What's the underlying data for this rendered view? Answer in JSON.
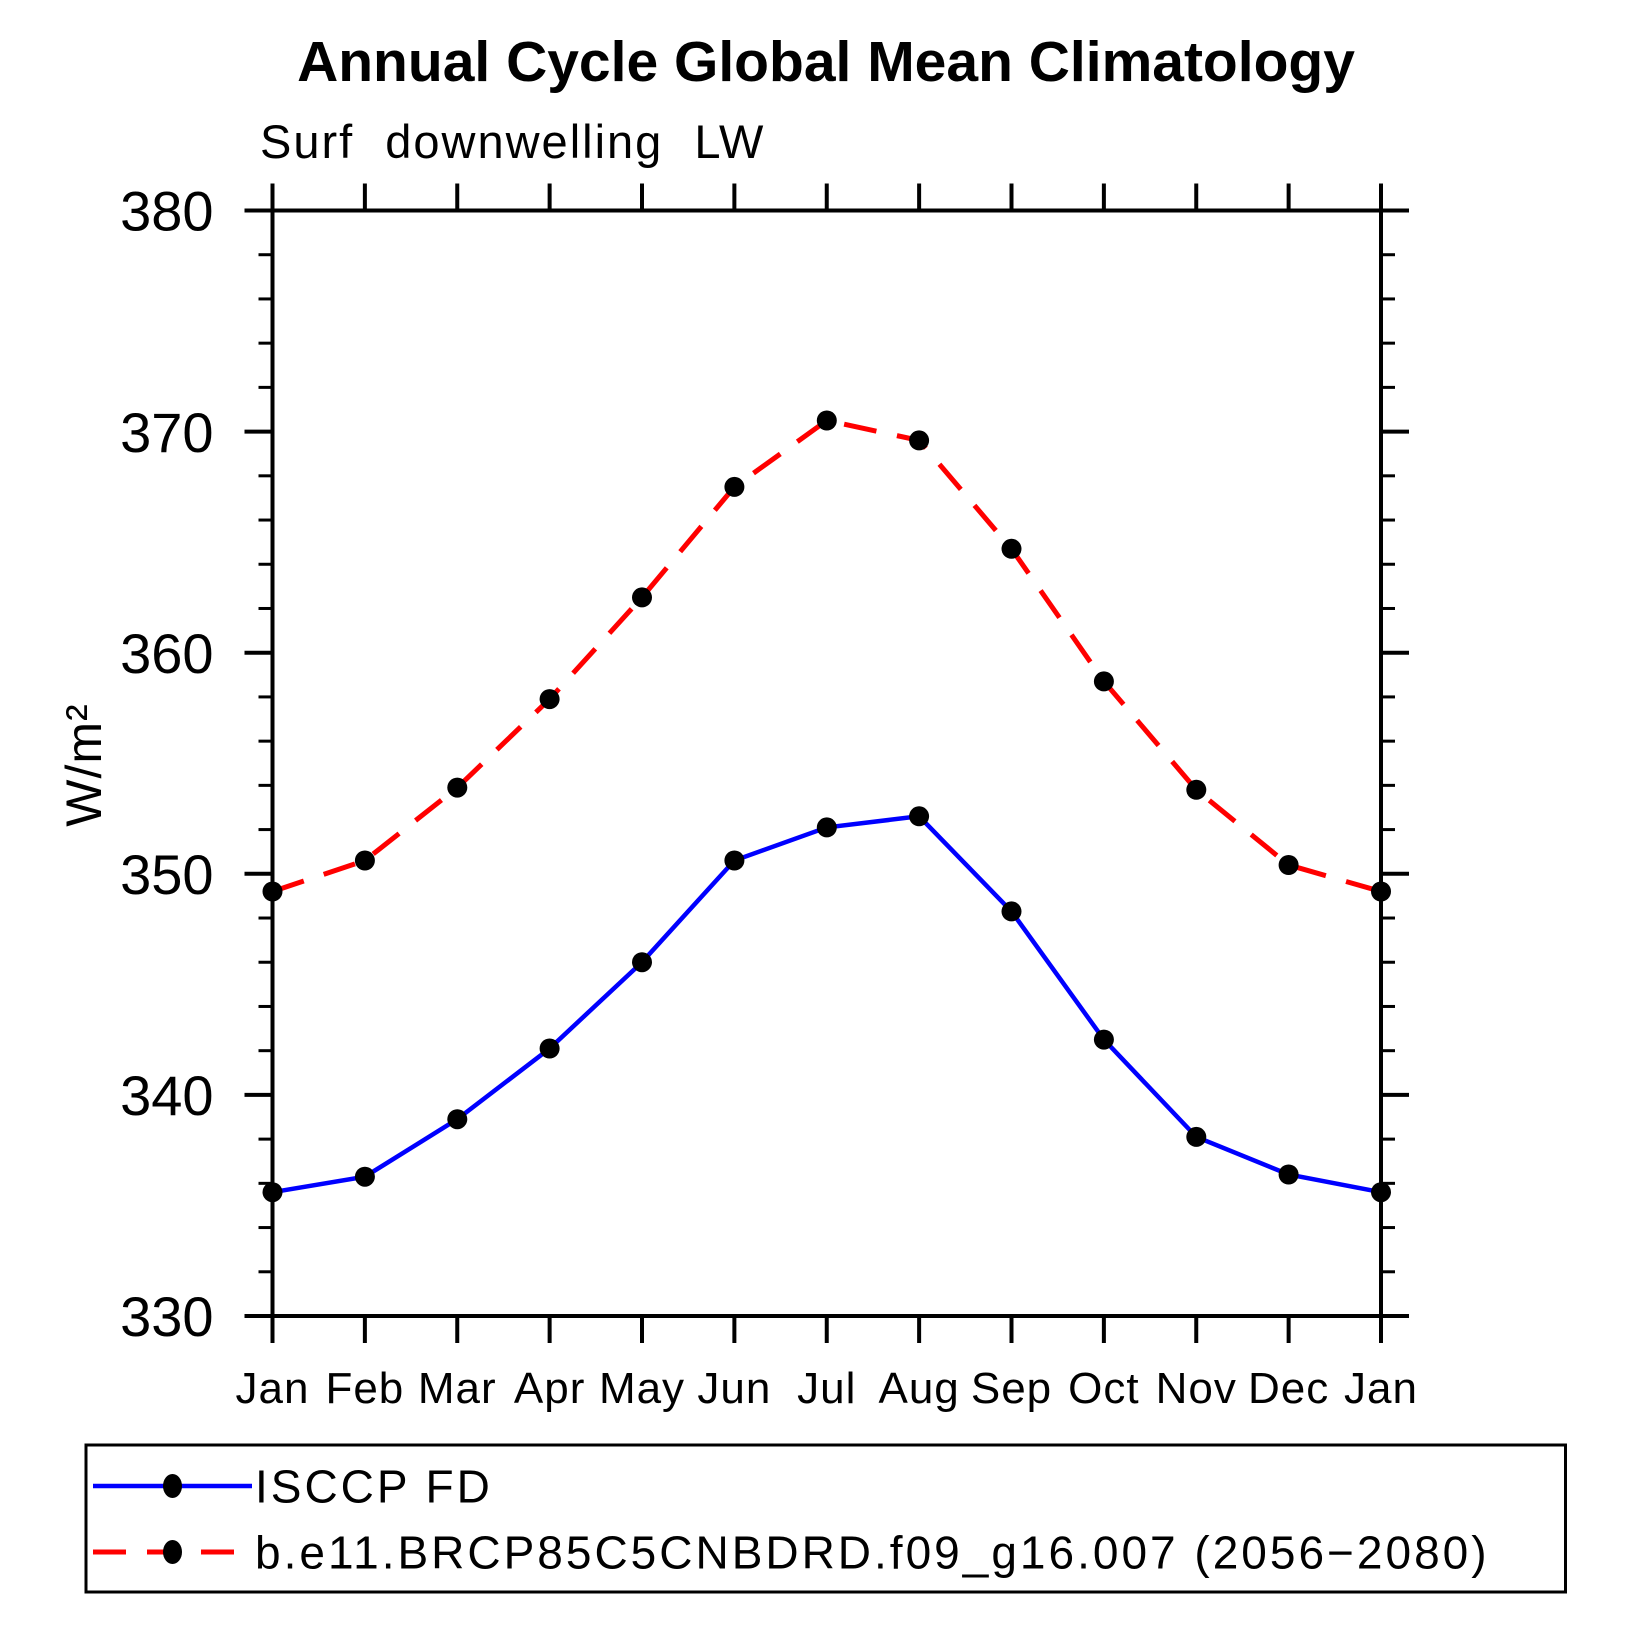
{
  "chart_data": {
    "type": "line",
    "title": "Annual Cycle Global Mean Climatology",
    "subtitle": "Surf downwelling LW",
    "ylabel": "W/m²",
    "xlabel": "",
    "categories": [
      "Jan",
      "Feb",
      "Mar",
      "Apr",
      "May",
      "Jun",
      "Jul",
      "Aug",
      "Sep",
      "Oct",
      "Nov",
      "Dec",
      "Jan"
    ],
    "ylim": [
      330,
      380
    ],
    "ytick_step": 10,
    "yminor_step": 2,
    "ytick_labels": [
      "330",
      "340",
      "350",
      "360",
      "370",
      "380"
    ],
    "grid": false,
    "legend_position": "bottom",
    "series": [
      {
        "name": "ISCCP FD",
        "color": "#0000ff",
        "style": "solid",
        "marker": "circle",
        "marker_color": "#000000",
        "values": [
          335.6,
          336.3,
          338.9,
          342.1,
          346.0,
          350.6,
          352.1,
          352.6,
          348.3,
          342.5,
          338.1,
          336.4,
          335.6
        ]
      },
      {
        "name": "b.e11.BRCP85C5CNBDRD.f09_g16.007 (2056−2080)",
        "color": "#ff0000",
        "style": "dashed",
        "marker": "circle",
        "marker_color": "#000000",
        "values": [
          349.2,
          350.6,
          353.9,
          357.9,
          362.5,
          367.5,
          370.5,
          369.6,
          364.7,
          358.7,
          353.8,
          350.4,
          349.2
        ]
      }
    ]
  }
}
